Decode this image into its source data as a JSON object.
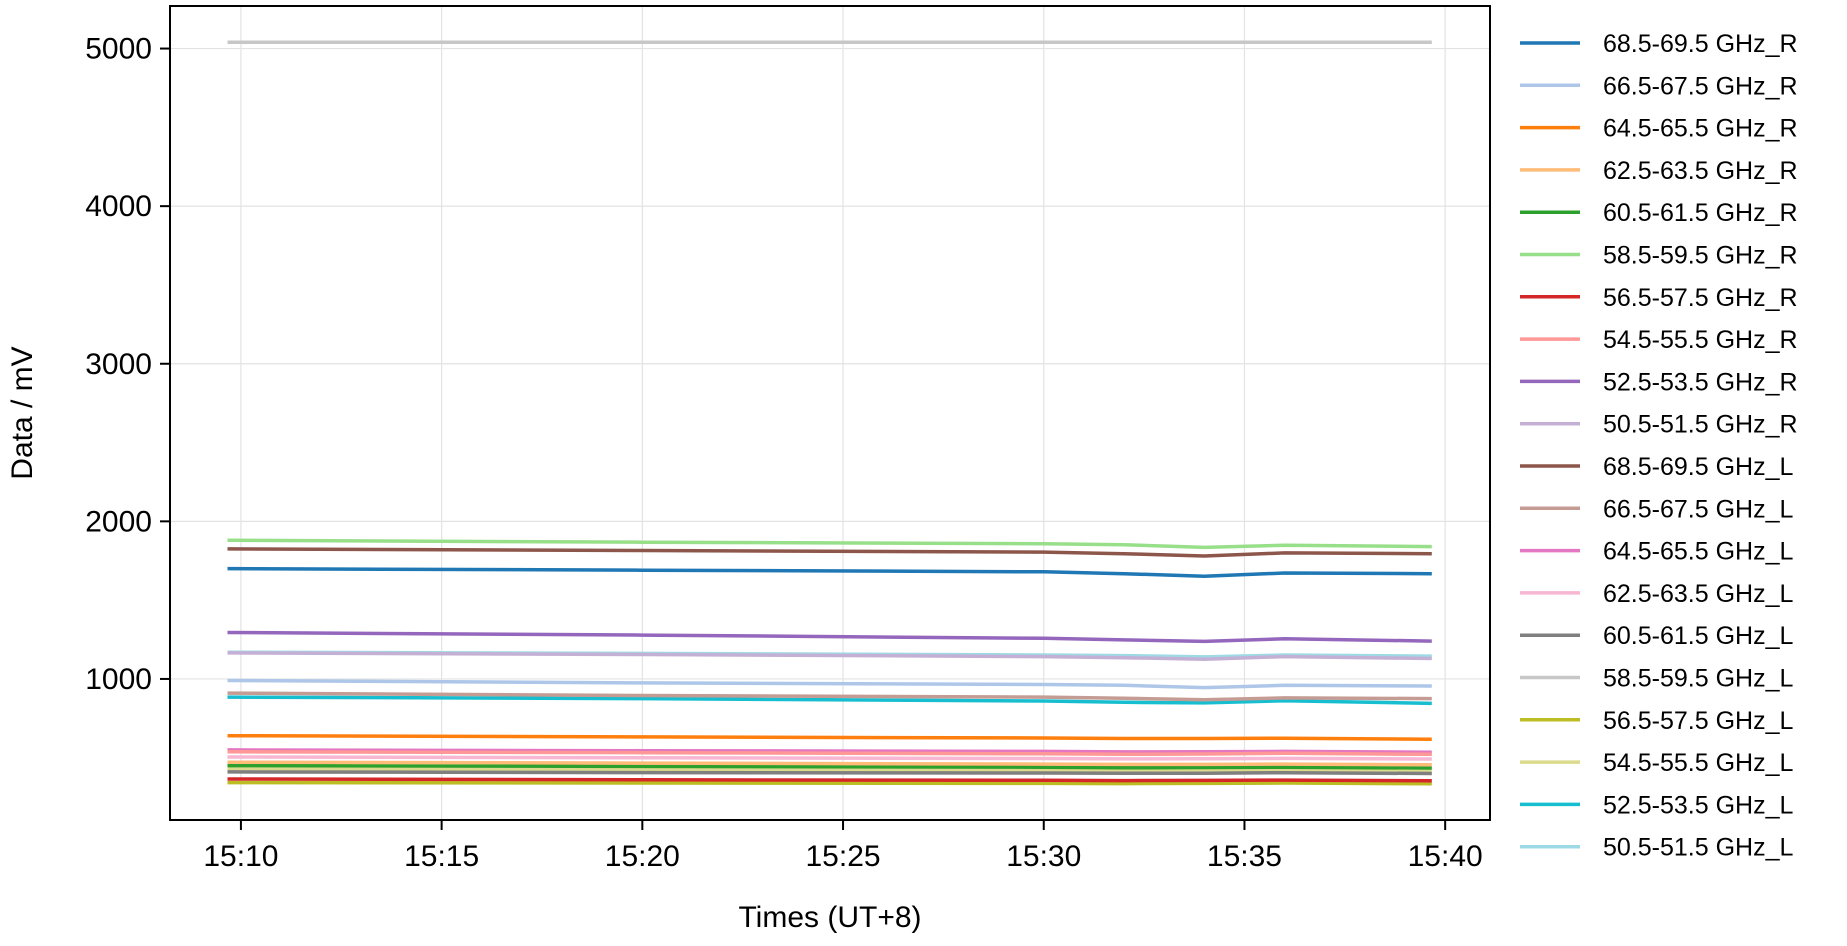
{
  "chart_data": {
    "type": "line",
    "title": "",
    "xlabel": "Times (UT+8)",
    "ylabel": "Data / mV",
    "xlim": [
      "15:08:14",
      "15:41:07"
    ],
    "ylim": [
      105,
      5270
    ],
    "xticks": [
      "15:10",
      "15:15",
      "15:20",
      "15:25",
      "15:30",
      "15:35",
      "15:40"
    ],
    "yticks": [
      1000,
      2000,
      3000,
      4000,
      5000
    ],
    "grid": true,
    "legend_position": "outside-right",
    "x": [
      "15:09:40",
      "15:20:00",
      "15:30:00",
      "15:32:00",
      "15:34:00",
      "15:36:00",
      "15:39:40"
    ],
    "series": [
      {
        "name": "68.5-69.5 GHz_R",
        "color": "#1f77b4",
        "values": [
          1700,
          1690,
          1680,
          1668,
          1652,
          1672,
          1668
        ]
      },
      {
        "name": "66.5-67.5 GHz_R",
        "color": "#aec7e8",
        "values": [
          990,
          975,
          965,
          960,
          945,
          960,
          955
        ]
      },
      {
        "name": "64.5-65.5 GHz_R",
        "color": "#ff7f0e",
        "values": [
          640,
          632,
          625,
          622,
          622,
          624,
          618
        ]
      },
      {
        "name": "62.5-63.5 GHz_R",
        "color": "#ffbb78",
        "values": [
          472,
          466,
          460,
          458,
          458,
          460,
          455
        ]
      },
      {
        "name": "60.5-61.5 GHz_R",
        "color": "#2ca02c",
        "values": [
          450,
          445,
          440,
          436,
          438,
          440,
          435
        ]
      },
      {
        "name": "58.5-59.5 GHz_R",
        "color": "#98df8a",
        "values": [
          1880,
          1868,
          1858,
          1852,
          1835,
          1848,
          1840
        ]
      },
      {
        "name": "56.5-57.5 GHz_R",
        "color": "#d62728",
        "values": [
          365,
          360,
          357,
          355,
          356,
          358,
          354
        ]
      },
      {
        "name": "54.5-55.5 GHz_R",
        "color": "#ff9896",
        "values": [
          538,
          532,
          525,
          522,
          524,
          528,
          522
        ]
      },
      {
        "name": "52.5-53.5 GHz_R",
        "color": "#9467bd",
        "values": [
          1295,
          1278,
          1258,
          1248,
          1238,
          1255,
          1240
        ]
      },
      {
        "name": "50.5-51.5 GHz_R",
        "color": "#c5b0d5",
        "values": [
          1165,
          1155,
          1142,
          1135,
          1125,
          1142,
          1130
        ]
      },
      {
        "name": "68.5-69.5 GHz_L",
        "color": "#8c564b",
        "values": [
          1825,
          1815,
          1805,
          1795,
          1780,
          1800,
          1795
        ]
      },
      {
        "name": "66.5-67.5 GHz_L",
        "color": "#c49c94",
        "values": [
          910,
          895,
          885,
          878,
          868,
          880,
          875
        ]
      },
      {
        "name": "64.5-65.5 GHz_L",
        "color": "#e377c2",
        "values": [
          550,
          545,
          540,
          537,
          538,
          540,
          535
        ]
      },
      {
        "name": "62.5-63.5 GHz_L",
        "color": "#f7b6d2",
        "values": [
          505,
          500,
          495,
          493,
          494,
          496,
          492
        ]
      },
      {
        "name": "60.5-61.5 GHz_L",
        "color": "#7f7f7f",
        "values": [
          410,
          406,
          403,
          402,
          402,
          405,
          400
        ]
      },
      {
        "name": "58.5-59.5 GHz_L",
        "color": "#c7c7c7",
        "values": [
          5040,
          5040,
          5040,
          5040,
          5040,
          5040,
          5040
        ]
      },
      {
        "name": "56.5-57.5 GHz_L",
        "color": "#bcbd22",
        "values": [
          342,
          340,
          337,
          336,
          337,
          340,
          335
        ]
      },
      {
        "name": "54.5-55.5 GHz_L",
        "color": "#dbdb8d",
        "values": [
          430,
          425,
          420,
          418,
          419,
          422,
          415
        ]
      },
      {
        "name": "52.5-53.5 GHz_L",
        "color": "#17becf",
        "values": [
          885,
          875,
          860,
          852,
          848,
          862,
          845
        ]
      },
      {
        "name": "50.5-51.5 GHz_L",
        "color": "#9edae5",
        "values": [
          1170,
          1162,
          1152,
          1148,
          1140,
          1152,
          1145
        ]
      }
    ]
  }
}
